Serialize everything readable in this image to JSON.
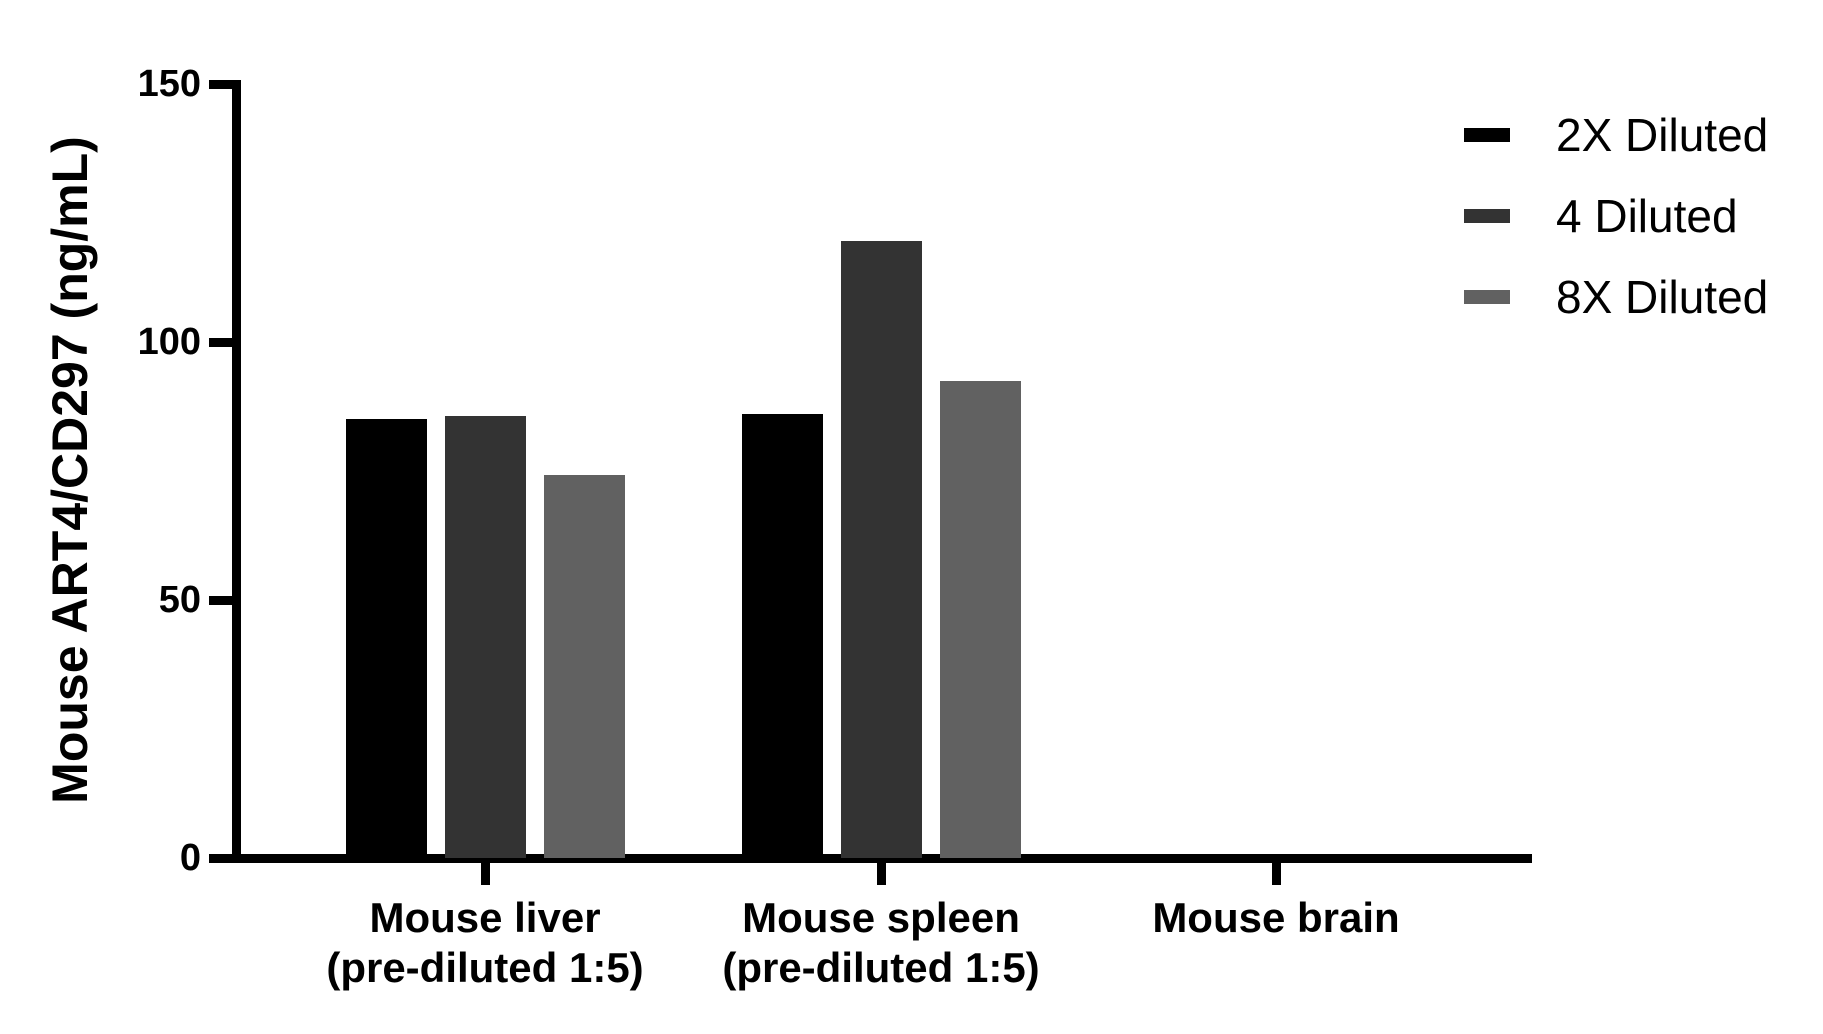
{
  "chart_data": {
    "type": "bar",
    "title": "",
    "xlabel": "",
    "ylabel": "Mouse ART4/CD297 (ng/mL)",
    "ylim": [
      0,
      150
    ],
    "yticks": [
      0,
      50,
      100,
      150
    ],
    "ytick_labels": [
      "0",
      "50",
      "100",
      "150"
    ],
    "grid": false,
    "legend_position": "upper right (outside plot)",
    "categories": [
      {
        "line1": "Mouse liver",
        "line2": "(pre-diluted 1:5)"
      },
      {
        "line1": "Mouse spleen",
        "line2": "(pre-diluted 1:5)"
      },
      {
        "line1": "Mouse brain",
        "line2": ""
      }
    ],
    "category_names": [
      "Mouse liver (pre-diluted 1:5)",
      "Mouse spleen (pre-diluted 1:5)",
      "Mouse brain"
    ],
    "series": [
      {
        "name": "2X Diluted",
        "color": "#000000",
        "values": [
          85,
          86.0,
          0
        ]
      },
      {
        "name": "4 Diluted",
        "color": "#333333",
        "values": [
          85.7,
          119.5,
          0
        ]
      },
      {
        "name": "8X Diluted",
        "color": "#616161",
        "values": [
          74.2,
          92.4,
          0
        ]
      }
    ]
  },
  "legend": {
    "items": [
      {
        "label": "2X Diluted",
        "color": "#000000"
      },
      {
        "label": "4 Diluted",
        "color": "#333333"
      },
      {
        "label": "8X Diluted",
        "color": "#616161"
      }
    ]
  }
}
